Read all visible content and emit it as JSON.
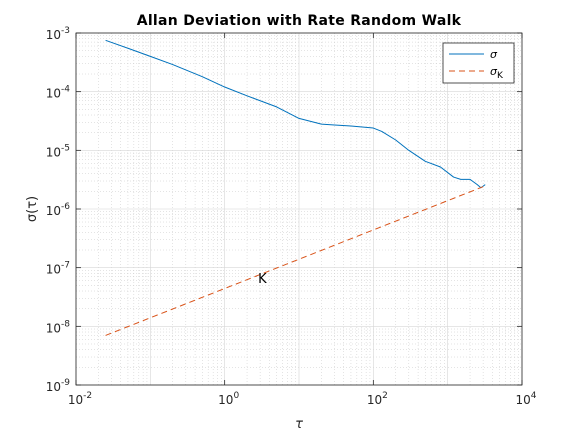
{
  "chart_data": {
    "type": "line",
    "title": "Allan Deviation with Rate Random Walk",
    "xlabel": "τ",
    "ylabel": "σ(τ)",
    "x_scale": "log",
    "y_scale": "log",
    "xlim": [
      0.01,
      10000
    ],
    "ylim": [
      1e-09,
      0.001
    ],
    "x_ticks": [
      {
        "value": 0.01,
        "base": "10",
        "exp": "-2"
      },
      {
        "value": 1,
        "base": "10",
        "exp": "0"
      },
      {
        "value": 100,
        "base": "10",
        "exp": "2"
      },
      {
        "value": 10000,
        "base": "10",
        "exp": "4"
      }
    ],
    "y_ticks": [
      {
        "value": 1e-09,
        "base": "10",
        "exp": "-9"
      },
      {
        "value": 1e-08,
        "base": "10",
        "exp": "-8"
      },
      {
        "value": 1e-07,
        "base": "10",
        "exp": "-7"
      },
      {
        "value": 1e-06,
        "base": "10",
        "exp": "-6"
      },
      {
        "value": 1e-05,
        "base": "10",
        "exp": "-5"
      },
      {
        "value": 0.0001,
        "base": "10",
        "exp": "-4"
      },
      {
        "value": 0.001,
        "base": "10",
        "exp": "-3"
      }
    ],
    "grid": true,
    "minor_grid": true,
    "legend": {
      "location": "top-right",
      "entries": [
        {
          "label": "σ",
          "subscript": "",
          "series": "sigma"
        },
        {
          "label": "σ",
          "subscript": "K",
          "series": "sigma_k"
        }
      ]
    },
    "series": [
      {
        "id": "sigma",
        "color": "#0072BD",
        "dash": "solid",
        "x": [
          0.025,
          0.05,
          0.1,
          0.2,
          0.5,
          1,
          2,
          5,
          10,
          20,
          30,
          50,
          100,
          130,
          200,
          300,
          500,
          800,
          1200,
          1500,
          2000,
          2500,
          2800,
          3200
        ],
        "y": [
          0.00075,
          0.00055,
          0.0004,
          0.00029,
          0.00018,
          0.00012,
          8.5e-05,
          5.5e-05,
          3.5e-05,
          2.8e-05,
          2.7e-05,
          2.6e-05,
          2.4e-05,
          2.1e-05,
          1.5e-05,
          1e-05,
          6.5e-06,
          5.2e-06,
          3.5e-06,
          3.2e-06,
          3.2e-06,
          2.6e-06,
          2.3e-06,
          2.6e-06
        ]
      },
      {
        "id": "sigma_k",
        "color": "#D95319",
        "dash": "dashed",
        "x": [
          0.025,
          3000
        ],
        "y": [
          7e-09,
          2.4e-06
        ]
      }
    ],
    "annotations": [
      {
        "text": "K",
        "x": 3,
        "y": 7e-08
      }
    ]
  }
}
